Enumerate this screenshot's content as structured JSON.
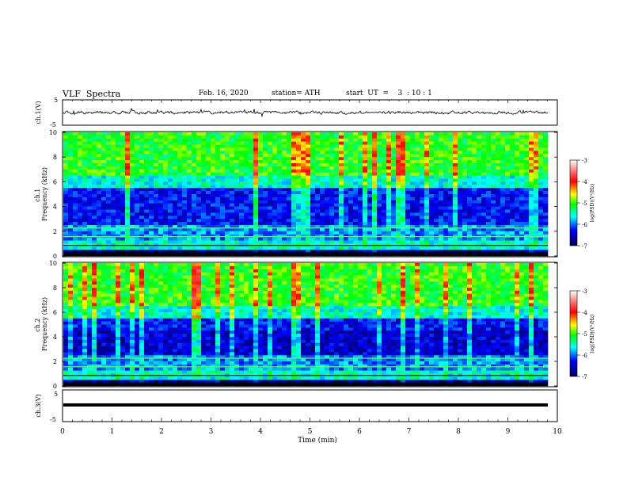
{
  "header": {
    "title": "VLF  Spectra",
    "date": "Feb. 16, 2020",
    "station": "station= ATH",
    "start_ut": "start  UT  =    3  : 10 : 1"
  },
  "chart_data": [
    {
      "type": "line",
      "name": "ch1-waveform",
      "ylabel": "ch.1(V)",
      "ylim": [
        -5,
        5
      ],
      "yticks": [
        "5",
        "-5"
      ],
      "xlim": [
        0,
        10
      ],
      "color": "#000000"
    },
    {
      "type": "heatmap",
      "name": "ch1-spectrogram",
      "ylabel": "ch.1\nFrequency (kHz)",
      "ylim": [
        0,
        10
      ],
      "yticks": [
        "0",
        "2",
        "4",
        "6",
        "8",
        "10"
      ],
      "xlim": [
        0,
        9.8
      ],
      "colorbar": {
        "label": "log(PSD)(V²/Hz)",
        "range": [
          -7,
          -3
        ],
        "ticks": [
          "-3",
          "-4",
          "-5",
          "-6",
          "-7"
        ]
      }
    },
    {
      "type": "heatmap",
      "name": "ch2-spectrogram",
      "ylabel": "ch.2\nFrequency (kHz)",
      "ylim": [
        0,
        10
      ],
      "yticks": [
        "0",
        "2",
        "4",
        "6",
        "8",
        "10"
      ],
      "xlim": [
        0,
        9.8
      ],
      "colorbar": {
        "label": "log(PSD)(V²/Hz)",
        "range": [
          -7,
          -3
        ],
        "ticks": [
          "-3",
          "-4",
          "-5",
          "-6",
          "-7"
        ]
      }
    },
    {
      "type": "line",
      "name": "ch3-waveform",
      "ylabel": "ch.3(V)",
      "ylim": [
        -5,
        5
      ],
      "yticks": [
        "5",
        "-5"
      ],
      "xlim": [
        0,
        10
      ],
      "color": "#000000"
    }
  ],
  "xaxis": {
    "label": "Time  (min)",
    "range": [
      0,
      10
    ],
    "ticks": [
      "0",
      "1",
      "2",
      "3",
      "4",
      "5",
      "6",
      "7",
      "8",
      "9",
      "10"
    ]
  },
  "colors": {
    "colormap": [
      "#ffffff",
      "#ff0000",
      "#ffff00",
      "#00ff00",
      "#00ffff",
      "#0000ff",
      "#000060"
    ]
  }
}
